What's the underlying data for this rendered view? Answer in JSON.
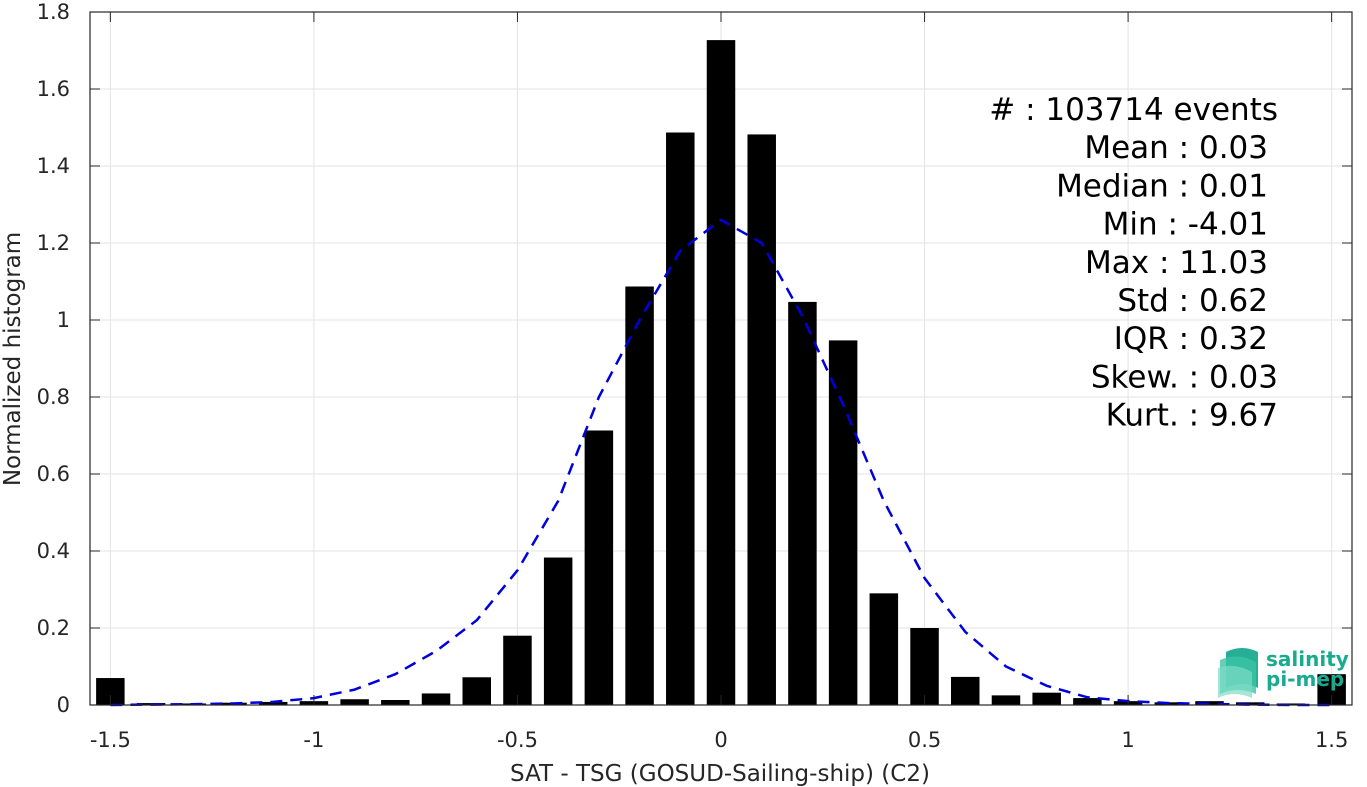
{
  "chart_data": {
    "type": "bar",
    "xlabel": "SAT - TSG (GOSUD-Sailing-ship) (C2)",
    "ylabel": "Normalized histogram",
    "xlim": [
      -1.55,
      1.55
    ],
    "ylim": [
      0,
      1.8
    ],
    "xticks": [
      "-1.5",
      "-1",
      "-0.5",
      "0",
      "0.5",
      "1",
      "1.5"
    ],
    "xtick_values": [
      -1.5,
      -1,
      -0.5,
      0,
      0.5,
      1,
      1.5
    ],
    "yticks": [
      "0",
      "0.2",
      "0.4",
      "0.6",
      "0.8",
      "1",
      "1.2",
      "1.4",
      "1.6",
      "1.8"
    ],
    "ytick_values": [
      0,
      0.2,
      0.4,
      0.6,
      0.8,
      1,
      1.2,
      1.4,
      1.6,
      1.8
    ],
    "grid": true,
    "bar_color": "#000000",
    "bar_width": 0.07,
    "bars": {
      "x": [
        -1.5,
        -1.4,
        -1.3,
        -1.2,
        -1.1,
        -1.0,
        -0.9,
        -0.8,
        -0.7,
        -0.6,
        -0.5,
        -0.4,
        -0.3,
        -0.2,
        -0.1,
        0.0,
        0.1,
        0.2,
        0.3,
        0.4,
        0.5,
        0.6,
        0.7,
        0.8,
        0.9,
        1.0,
        1.1,
        1.2,
        1.3,
        1.4,
        1.5
      ],
      "values": [
        0.07,
        0.005,
        0.004,
        0.006,
        0.008,
        0.01,
        0.015,
        0.013,
        0.03,
        0.072,
        0.18,
        0.383,
        0.713,
        1.087,
        1.487,
        1.727,
        1.482,
        1.047,
        0.947,
        0.29,
        0.2,
        0.073,
        0.025,
        0.032,
        0.018,
        0.01,
        0.007,
        0.01,
        0.007,
        0.004,
        0.08
      ]
    },
    "fit_curve": {
      "style": "dashed",
      "color": "#0000dd",
      "x": [
        -1.5,
        -1.4,
        -1.3,
        -1.2,
        -1.1,
        -1.0,
        -0.9,
        -0.8,
        -0.7,
        -0.6,
        -0.5,
        -0.4,
        -0.3,
        -0.2,
        -0.1,
        0.0,
        0.1,
        0.2,
        0.3,
        0.4,
        0.5,
        0.6,
        0.7,
        0.8,
        0.9,
        1.0,
        1.1,
        1.2,
        1.3,
        1.4,
        1.5
      ],
      "y": [
        0.0,
        0.001,
        0.002,
        0.004,
        0.008,
        0.018,
        0.04,
        0.08,
        0.14,
        0.22,
        0.35,
        0.53,
        0.8,
        1.0,
        1.18,
        1.26,
        1.2,
        1.01,
        0.78,
        0.53,
        0.33,
        0.19,
        0.1,
        0.05,
        0.02,
        0.01,
        0.005,
        0.003,
        0.001,
        0.0,
        0.0
      ]
    },
    "stats": [
      "#  : 103714 events",
      "Mean : 0.03",
      "Median : 0.01",
      "Min : -4.01",
      "Max : 11.03",
      "Std : 0.62",
      "IQR : 0.32",
      "Skew. : 0.03",
      "Kurt. : 9.67"
    ]
  },
  "logo": {
    "line1": "salinity",
    "line2": "pi-mep",
    "color": "#1aab8f"
  }
}
